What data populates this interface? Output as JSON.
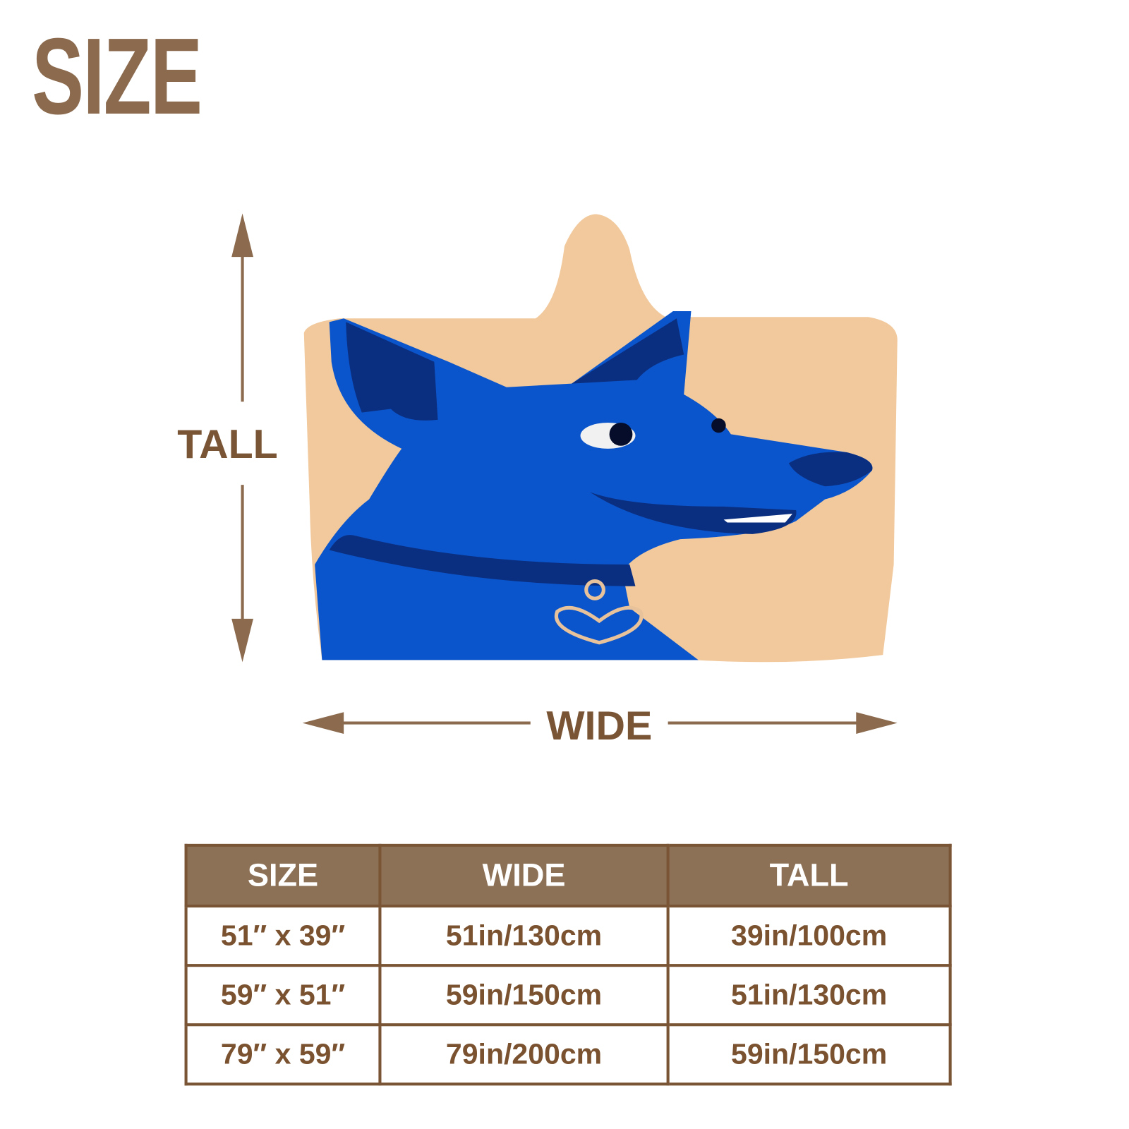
{
  "title": "SIZE",
  "dimension_labels": {
    "tall": "TALL",
    "wide": "WIDE"
  },
  "product_image": {
    "description_icon": "hooded-blanket-blue-dog-icon",
    "colors": {
      "blanket": "#f1c99c",
      "dog": "#0a55cc",
      "dog_dark": "#0b2f80"
    }
  },
  "table": {
    "headers": [
      "SIZE",
      "WIDE",
      "TALL"
    ],
    "rows": [
      [
        "51″ x 39″",
        "51in/130cm",
        "39in/100cm"
      ],
      [
        "59″ x 51″",
        "59in/150cm",
        "51in/130cm"
      ],
      [
        "79″ x 59″",
        "79in/200cm",
        "59in/150cm"
      ]
    ]
  },
  "colors": {
    "brand_brown": "#8b6a4e",
    "border": "#7a5535",
    "header_bg": "#8d7156"
  }
}
